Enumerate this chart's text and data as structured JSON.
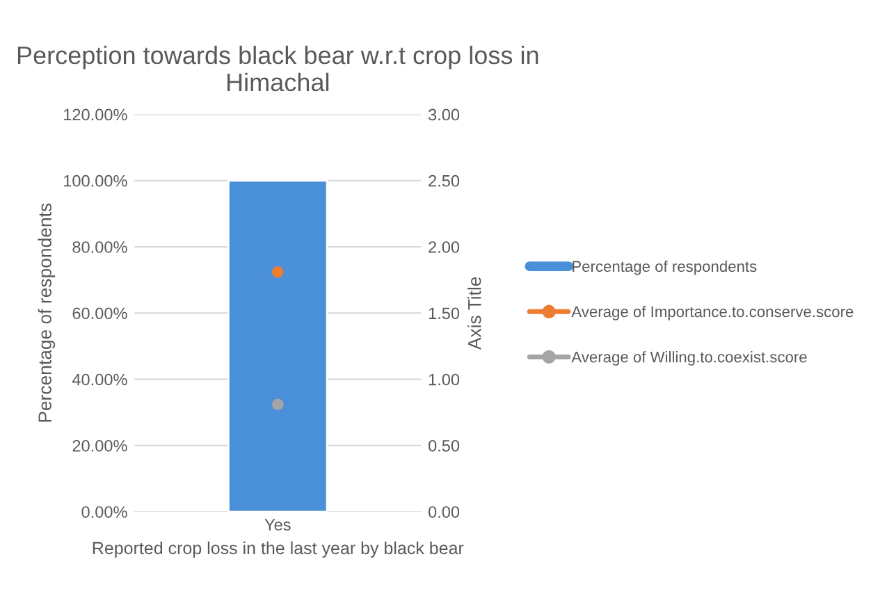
{
  "chart_data": {
    "type": "bar",
    "title": "Perception towards black bear w.r.t crop loss in Himachal",
    "xlabel": "Reported crop loss in the last year by black bear",
    "ylabel": "Percentage of respondents",
    "y2label": "Axis Title",
    "categories": [
      "Yes"
    ],
    "series": [
      {
        "name": "Percentage of respondents",
        "color": "#4a90d9",
        "values": [
          100
        ]
      },
      {
        "name": "Average of Importance.to.conserve.score",
        "type": "line",
        "axis": "y2",
        "color": "#ed7d31",
        "marker": "circle",
        "values": [
          1.81
        ]
      },
      {
        "name": "Average of Willing.to.coexist.score",
        "type": "line",
        "axis": "y2",
        "color": "#a5a5a5",
        "marker": "circle",
        "values": [
          0.81
        ]
      }
    ],
    "ylim": [
      0,
      120
    ],
    "yticks": [
      {
        "value": 0,
        "label": "0.00%"
      },
      {
        "value": 20,
        "label": "20.00%"
      },
      {
        "value": 40,
        "label": "40.00%"
      },
      {
        "value": 60,
        "label": "60.00%"
      },
      {
        "value": 80,
        "label": "80.00%"
      },
      {
        "value": 100,
        "label": "100.00%"
      },
      {
        "value": 120,
        "label": "120.00%"
      }
    ],
    "y2lim": [
      0,
      3
    ],
    "y2ticks": [
      {
        "value": 0,
        "label": "0.00"
      },
      {
        "value": 0.5,
        "label": "0.50"
      },
      {
        "value": 1,
        "label": "1.00"
      },
      {
        "value": 1.5,
        "label": "1.50"
      },
      {
        "value": 2,
        "label": "2.00"
      },
      {
        "value": 2.5,
        "label": "2.50"
      },
      {
        "value": 3,
        "label": "3.00"
      }
    ],
    "grid": "y",
    "legend": "right"
  }
}
